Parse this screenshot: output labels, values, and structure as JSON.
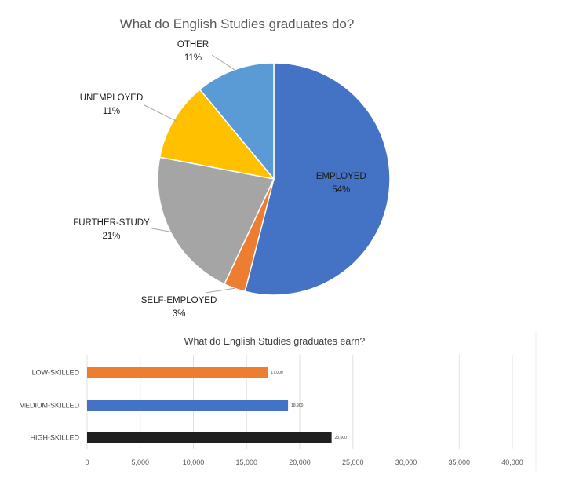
{
  "chart_data": [
    {
      "type": "pie",
      "title": "What do English Studies graduates do?",
      "slices": [
        {
          "label": "EMPLOYED",
          "value": 54,
          "value_label": "54%",
          "color": "#4472C4"
        },
        {
          "label": "SELF-EMPLOYED",
          "value": 3,
          "value_label": "3%",
          "color": "#ED7D31"
        },
        {
          "label": "FURTHER-STUDY",
          "value": 21,
          "value_label": "21%",
          "color": "#A5A5A5"
        },
        {
          "label": "UNEMPLOYED",
          "value": 11,
          "value_label": "11%",
          "color": "#FFC000"
        },
        {
          "label": "OTHER",
          "value": 11,
          "value_label": "11%",
          "color": "#5B9BD5"
        }
      ]
    },
    {
      "type": "bar",
      "orientation": "horizontal",
      "title": "What do English Studies graduates earn?",
      "categories": [
        "LOW-SKILLED",
        "MEDIUM-SKILLED",
        "HIGH-SKILLED"
      ],
      "values": [
        17000,
        18900,
        23000
      ],
      "value_labels": [
        "17,000",
        "18,900",
        "23,000"
      ],
      "colors": [
        "#ED7D31",
        "#4472C4",
        "#1F1F1F"
      ],
      "xlim": [
        0,
        40000
      ],
      "xticks": [
        0,
        5000,
        10000,
        15000,
        20000,
        25000,
        30000,
        35000,
        40000
      ],
      "xtick_labels": [
        "0",
        "5,000",
        "10,000",
        "15,000",
        "20,000",
        "25,000",
        "30,000",
        "35,000",
        "40,000"
      ],
      "grid": true
    }
  ]
}
